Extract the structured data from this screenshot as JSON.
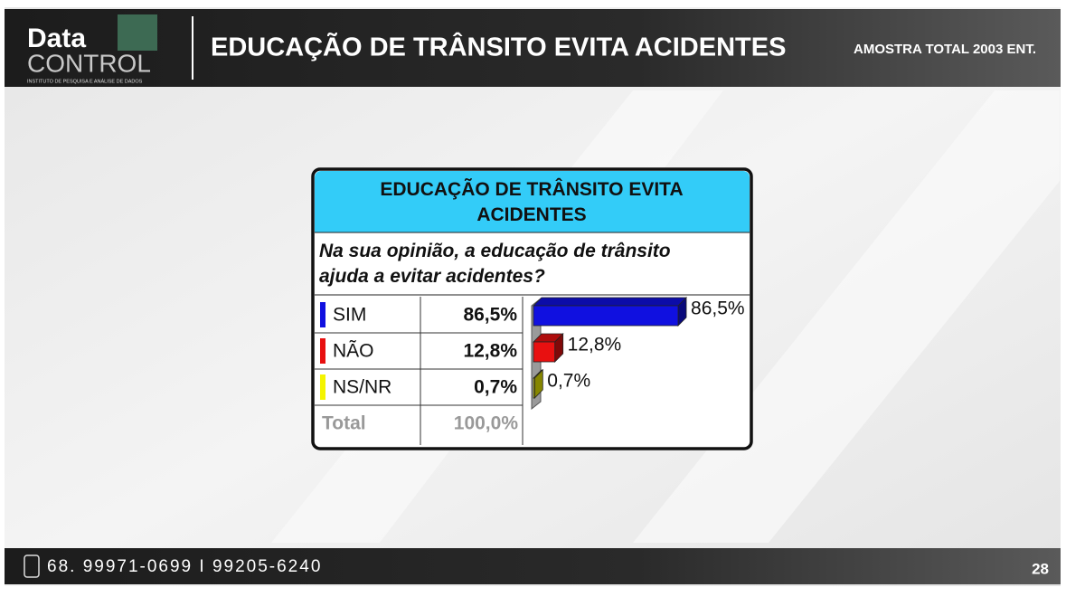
{
  "header": {
    "logo_top": "Data",
    "logo_bottom": "CONTROL",
    "logo_tagline": "INSTITUTO DE PESQUISA E ANÁLISE DE DADOS",
    "title": "EDUCAÇÃO DE TRÂNSITO EVITA ACIDENTES",
    "sample": "AMOSTRA TOTAL 2003 ENT."
  },
  "chart_data": {
    "type": "bar",
    "orientation": "horizontal",
    "title": "EDUCAÇÃO DE TRÂNSITO EVITA ACIDENTES",
    "subtitle": "Na sua opinião, a educação de trânsito ajuda a evitar acidentes?",
    "categories": [
      "SIM",
      "NÃO",
      "NS/NR"
    ],
    "values": [
      86.5,
      12.8,
      0.7
    ],
    "value_labels": [
      "86,5%",
      "12,8%",
      "0,7%"
    ],
    "colors": [
      "#1010e0",
      "#e81010",
      "#f4f400"
    ],
    "total": {
      "label": "Total",
      "value_label": "100,0%"
    }
  },
  "footer": {
    "phone": "68. 99971-0699 I 99205-6240",
    "page": "28"
  }
}
